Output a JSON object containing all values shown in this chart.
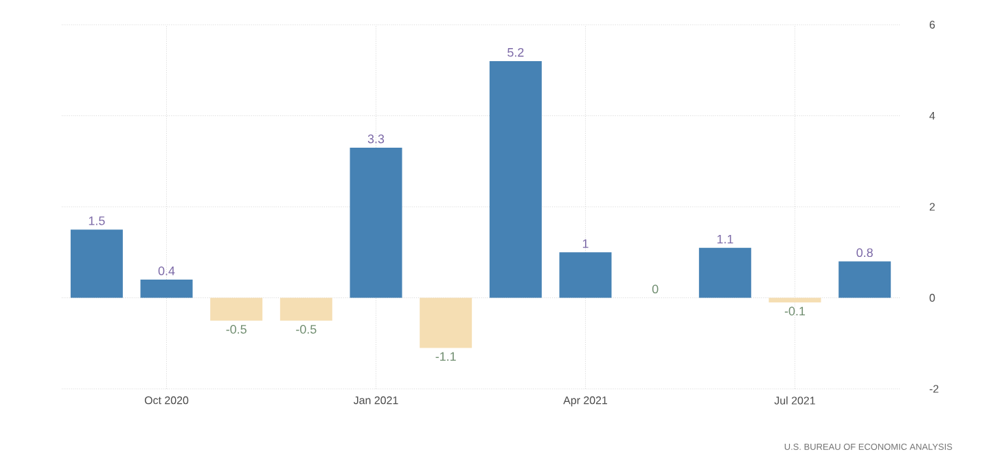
{
  "chart_data": {
    "type": "bar",
    "categories": [
      null,
      "Oct 2020",
      null,
      null,
      "Jan 2021",
      null,
      null,
      "Apr 2021",
      null,
      null,
      "Jul 2021",
      null
    ],
    "values": [
      1.5,
      0.4,
      -0.5,
      -0.5,
      3.3,
      -1.1,
      5.2,
      1,
      0,
      1.1,
      -0.1,
      0.8
    ],
    "colors": [
      "#4682b4",
      "#4682b4",
      "#f5deb3",
      "#f5deb3",
      "#4682b4",
      "#f5deb3",
      "#4682b4",
      "#4682b4",
      "#4682b4",
      "#4682b4",
      "#f5deb3",
      "#4682b4"
    ],
    "ylim": [
      -2,
      6
    ],
    "yticks": [
      -2,
      0,
      2,
      4,
      6
    ],
    "grid": true,
    "data_labels": true,
    "annotations": [
      "U.S. BUREAU OF ECONOMIC ANALYSIS"
    ]
  }
}
